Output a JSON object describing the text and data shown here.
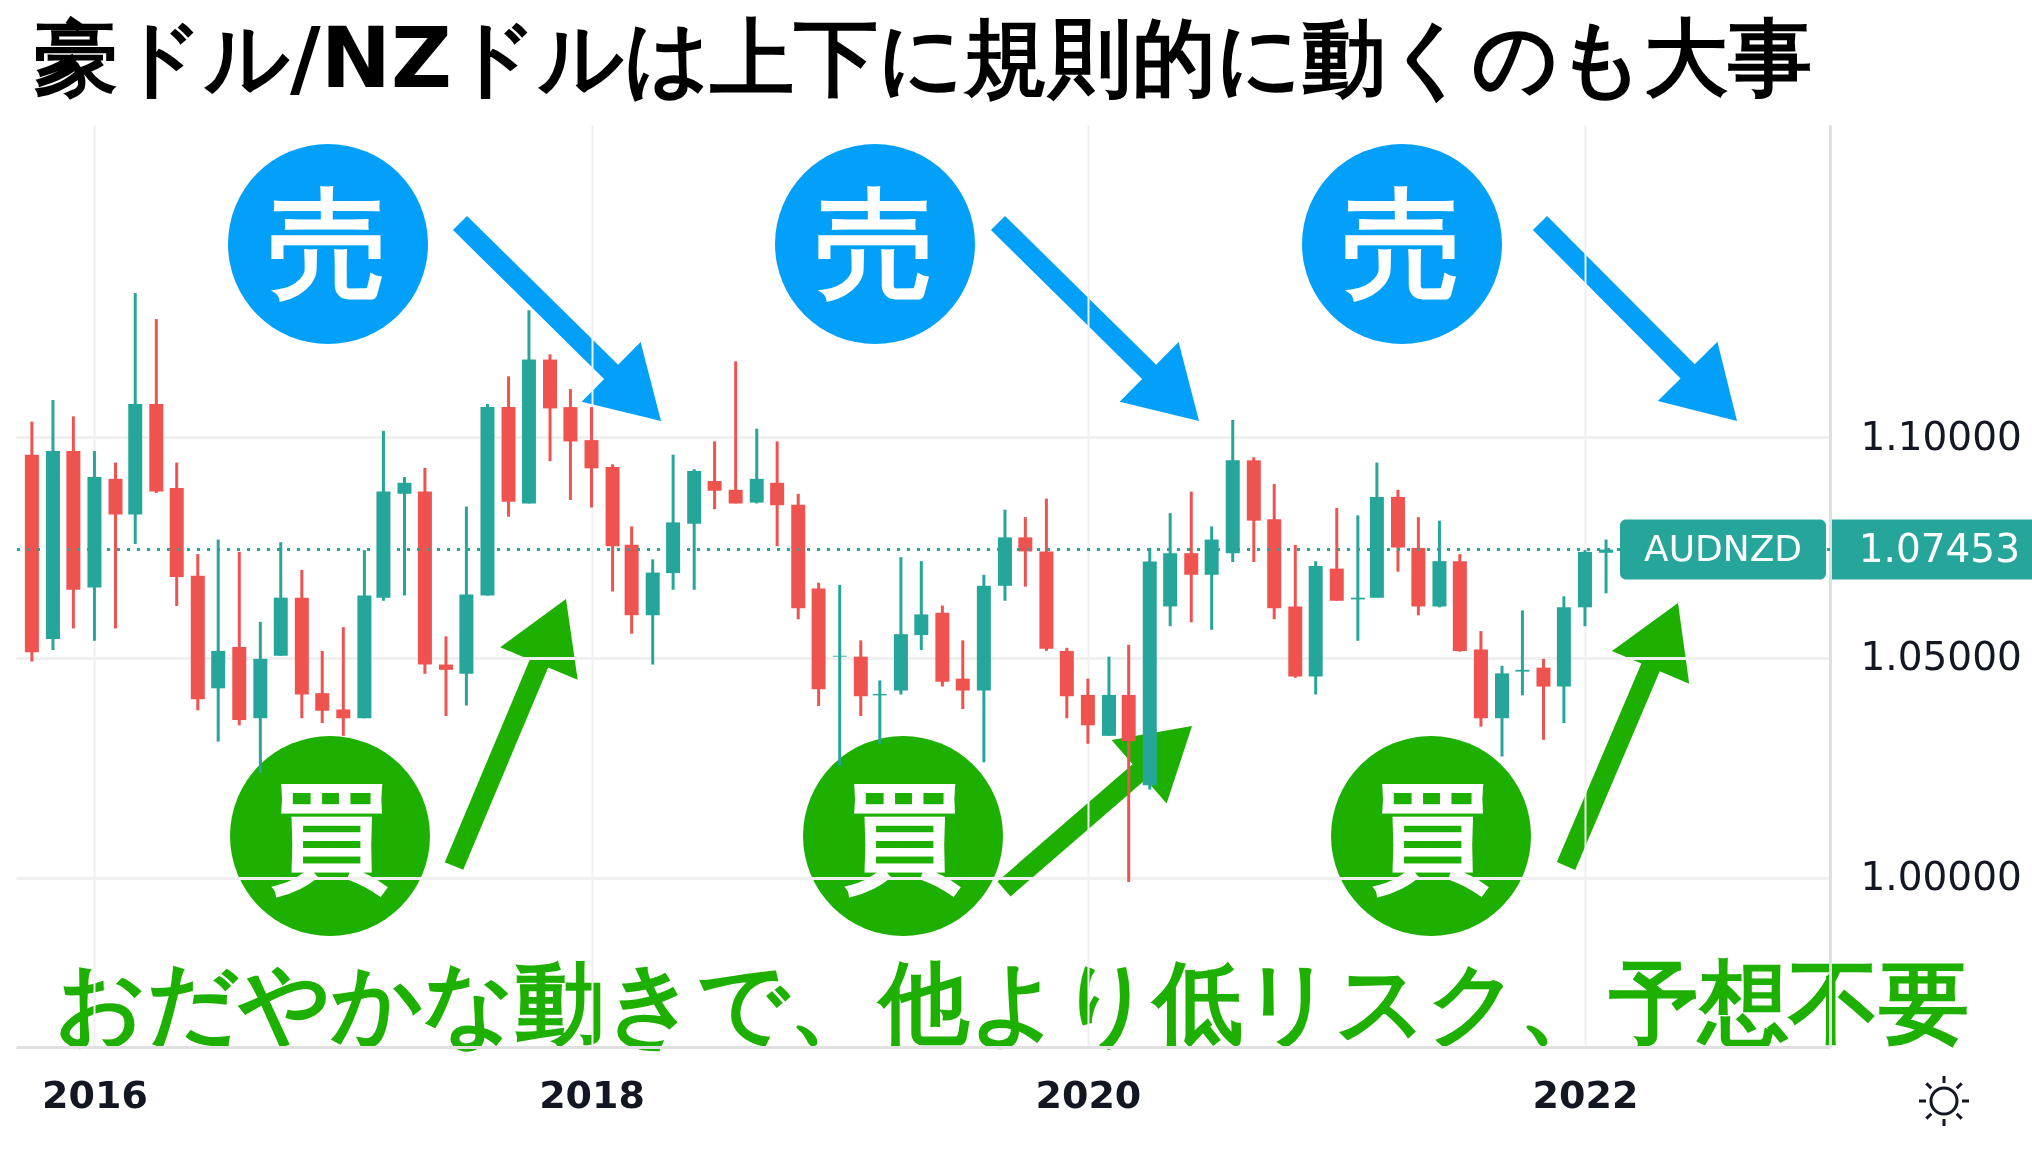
{
  "chart_data": {
    "type": "candlestick",
    "title": "豪ドル/NZドルは上下に規則的に動くのも大事",
    "x": [
      "2015-10",
      "2015-11",
      "2015-12",
      "2016-01",
      "2016-02",
      "2016-03",
      "2016-04",
      "2016-05",
      "2016-06",
      "2016-07",
      "2016-08",
      "2016-09",
      "2016-10",
      "2016-11",
      "2016-12",
      "2017-01",
      "2017-02",
      "2017-03",
      "2017-04",
      "2017-05",
      "2017-06",
      "2017-07",
      "2017-08",
      "2017-09",
      "2017-10",
      "2017-11",
      "2017-12",
      "2018-01",
      "2018-02",
      "2018-03",
      "2018-04",
      "2018-05",
      "2018-06",
      "2018-07",
      "2018-08",
      "2018-09",
      "2018-10",
      "2018-11",
      "2018-12",
      "2019-01",
      "2019-02",
      "2019-03",
      "2019-04",
      "2019-05",
      "2019-06",
      "2019-07",
      "2019-08",
      "2019-09",
      "2019-10",
      "2019-11",
      "2019-12",
      "2020-01",
      "2020-02",
      "2020-03",
      "2020-04",
      "2020-05",
      "2020-06",
      "2020-07",
      "2020-08",
      "2020-09",
      "2020-10",
      "2020-11",
      "2020-12",
      "2021-01",
      "2021-02",
      "2021-03",
      "2021-04",
      "2021-05",
      "2021-06",
      "2021-07",
      "2021-08",
      "2021-09",
      "2021-10",
      "2021-11",
      "2021-12",
      "2022-01",
      "2022-02"
    ],
    "ohlc": [
      [
        1.0961,
        1.1036,
        1.0491,
        1.0512
      ],
      [
        1.0542,
        1.1085,
        1.0517,
        1.0969
      ],
      [
        1.0969,
        1.1048,
        1.0566,
        1.0654
      ],
      [
        1.0659,
        1.0969,
        1.0538,
        1.091
      ],
      [
        1.0906,
        1.0943,
        1.0566,
        1.0825
      ],
      [
        1.0825,
        1.1328,
        1.0758,
        1.1076
      ],
      [
        1.1076,
        1.1269,
        1.0874,
        1.0877
      ],
      [
        1.0885,
        1.0943,
        1.0617,
        1.0683
      ],
      [
        1.0686,
        1.0735,
        1.038,
        1.0405
      ],
      [
        1.043,
        1.0768,
        1.0309,
        1.0515
      ],
      [
        1.0524,
        1.074,
        1.0346,
        1.0358
      ],
      [
        1.0362,
        1.0581,
        1.0237,
        1.0497
      ],
      [
        1.0504,
        1.0762,
        1.0504,
        1.0636
      ],
      [
        1.0636,
        1.0699,
        1.0362,
        1.0416
      ],
      [
        1.0419,
        1.0515,
        1.0351,
        1.0379
      ],
      [
        1.0382,
        1.0569,
        1.0322,
        1.0362
      ],
      [
        1.0362,
        1.0744,
        1.0362,
        1.0641
      ],
      [
        1.0636,
        1.1015,
        1.0629,
        1.0877
      ],
      [
        1.0872,
        1.091,
        1.0641,
        1.0897
      ],
      [
        1.0877,
        1.0931,
        1.0463,
        1.0484
      ],
      [
        1.0484,
        1.0548,
        1.0367,
        1.0472
      ],
      [
        1.0463,
        1.0843,
        1.0391,
        1.0643
      ],
      [
        1.0641,
        1.1076,
        1.0641,
        1.1069
      ],
      [
        1.1069,
        1.1139,
        1.082,
        1.0854
      ],
      [
        1.085,
        1.1289,
        1.085,
        1.1177
      ],
      [
        1.1177,
        1.1189,
        1.0946,
        1.1066
      ],
      [
        1.1069,
        1.111,
        1.0858,
        1.0991
      ],
      [
        1.0994,
        1.1069,
        1.0841,
        1.093
      ],
      [
        1.0933,
        1.0939,
        1.065,
        1.0753
      ],
      [
        1.0756,
        1.0798,
        1.0554,
        1.0596
      ],
      [
        1.0596,
        1.0723,
        1.0484,
        1.0693
      ],
      [
        1.0692,
        1.0961,
        1.0654,
        1.0807
      ],
      [
        1.0804,
        1.0928,
        1.0654,
        1.0924
      ],
      [
        1.0901,
        1.0991,
        1.0837,
        1.0879
      ],
      [
        1.0881,
        1.1173,
        1.085,
        1.085
      ],
      [
        1.0852,
        1.102,
        1.085,
        1.0906
      ],
      [
        1.0897,
        1.0991,
        1.0753,
        1.0846
      ],
      [
        1.0847,
        1.0872,
        1.0587,
        1.0612
      ],
      [
        1.0657,
        1.067,
        1.039,
        1.0428
      ],
      [
        1.0502,
        1.0665,
        1.0255,
        1.0504
      ],
      [
        1.0502,
        1.0539,
        1.0367,
        1.0412
      ],
      [
        1.0414,
        1.0448,
        1.0304,
        1.0417
      ],
      [
        1.0425,
        1.0728,
        1.0416,
        1.0553
      ],
      [
        1.0551,
        1.0719,
        1.0517,
        1.0598
      ],
      [
        1.0602,
        1.0618,
        1.0434,
        1.0445
      ],
      [
        1.0452,
        1.0539,
        1.0383,
        1.0425
      ],
      [
        1.0425,
        1.0688,
        1.0262,
        1.0663
      ],
      [
        1.0663,
        1.0836,
        1.0629,
        1.0773
      ],
      [
        1.0773,
        1.0819,
        1.0661,
        1.0741
      ],
      [
        1.0741,
        1.0861,
        1.0515,
        1.052
      ],
      [
        1.0515,
        1.0522,
        1.0362,
        1.0412
      ],
      [
        1.0415,
        1.0452,
        1.0304,
        1.0346
      ],
      [
        1.0322,
        1.0502,
        1.0322,
        1.0415
      ],
      [
        1.0415,
        1.0529,
        0.999,
        1.031
      ],
      [
        1.021,
        1.0749,
        1.02,
        1.0718
      ],
      [
        1.0616,
        1.0828,
        1.0571,
        1.0737
      ],
      [
        1.0737,
        1.0877,
        1.058,
        1.0688
      ],
      [
        1.0688,
        1.0798,
        1.0563,
        1.0768
      ],
      [
        1.0737,
        1.104,
        1.0717,
        1.0948
      ],
      [
        1.0948,
        1.0955,
        1.0717,
        1.0811
      ],
      [
        1.0814,
        1.0894,
        1.0587,
        1.0612
      ],
      [
        1.0616,
        1.0756,
        1.0454,
        1.0457
      ],
      [
        1.0457,
        1.0719,
        1.0416,
        1.0708
      ],
      [
        1.0702,
        1.084,
        1.0629,
        1.0629
      ],
      [
        1.0632,
        1.0823,
        1.0538,
        1.0636
      ],
      [
        1.0636,
        1.0943,
        1.0636,
        1.0865
      ],
      [
        1.0865,
        1.0881,
        1.0695,
        1.075
      ],
      [
        1.0749,
        1.0819,
        1.0596,
        1.0616
      ],
      [
        1.0616,
        1.0811,
        1.0614,
        1.0719
      ],
      [
        1.0719,
        1.0735,
        1.0513,
        1.0515
      ],
      [
        1.0518,
        1.056,
        1.0343,
        1.0362
      ],
      [
        1.0362,
        1.0481,
        1.0275,
        1.0464
      ],
      [
        1.0468,
        1.0607,
        1.0414,
        1.0472
      ],
      [
        1.0477,
        1.0497,
        1.0313,
        1.0434
      ],
      [
        1.0434,
        1.0639,
        1.0351,
        1.0614
      ],
      [
        1.0614,
        1.0744,
        1.0571,
        1.074
      ],
      [
        1.0738,
        1.0768,
        1.0646,
        1.07453
      ]
    ],
    "colors": [
      "#ef5350",
      "#26a69a",
      "#ef5350",
      "#26a69a",
      "#ef5350",
      "#26a69a",
      "#ef5350",
      "#ef5350",
      "#ef5350",
      "#26a69a",
      "#ef5350",
      "#26a69a",
      "#26a69a",
      "#ef5350",
      "#ef5350",
      "#ef5350",
      "#26a69a",
      "#26a69a",
      "#26a69a",
      "#ef5350",
      "#ef5350",
      "#26a69a",
      "#26a69a",
      "#ef5350",
      "#26a69a",
      "#ef5350",
      "#ef5350",
      "#ef5350",
      "#ef5350",
      "#ef5350",
      "#26a69a",
      "#26a69a",
      "#26a69a",
      "#ef5350",
      "#ef5350",
      "#26a69a",
      "#ef5350",
      "#ef5350",
      "#ef5350",
      "#26a69a",
      "#ef5350",
      "#26a69a",
      "#26a69a",
      "#26a69a",
      "#ef5350",
      "#ef5350",
      "#26a69a",
      "#26a69a",
      "#ef5350",
      "#ef5350",
      "#ef5350",
      "#ef5350",
      "#26a69a",
      "#ef5350",
      "#26a69a",
      "#26a69a",
      "#ef5350",
      "#26a69a",
      "#26a69a",
      "#ef5350",
      "#ef5350",
      "#ef5350",
      "#26a69a",
      "#ef5350",
      "#26a69a",
      "#26a69a",
      "#ef5350",
      "#ef5350",
      "#26a69a",
      "#ef5350",
      "#ef5350",
      "#26a69a",
      "#26a69a",
      "#ef5350",
      "#26a69a",
      "#26a69a",
      "#26a69a"
    ],
    "xlim": [
      "2015-09-15",
      "2022-12-20"
    ],
    "xticks": [
      "2016",
      "2018",
      "2020",
      "2022"
    ],
    "ylim": [
      0.9615,
      1.171
    ],
    "yticks": [
      {
        "value": 1.0,
        "label": "1.00000"
      },
      {
        "value": 1.05,
        "label": "1.05000"
      },
      {
        "value": 1.1,
        "label": "1.10000"
      }
    ],
    "grid": true,
    "ref_lines": [
      {
        "axis": "y",
        "value": 1.07453,
        "label": "AUDNZD",
        "color": "#26a69a",
        "line_style": "dotted"
      }
    ],
    "annotations": [
      "売",
      "売",
      "売",
      "買",
      "買",
      "買",
      "おだやかな動きで、他より低リスク、予想不要",
      "1.07453"
    ]
  }
}
